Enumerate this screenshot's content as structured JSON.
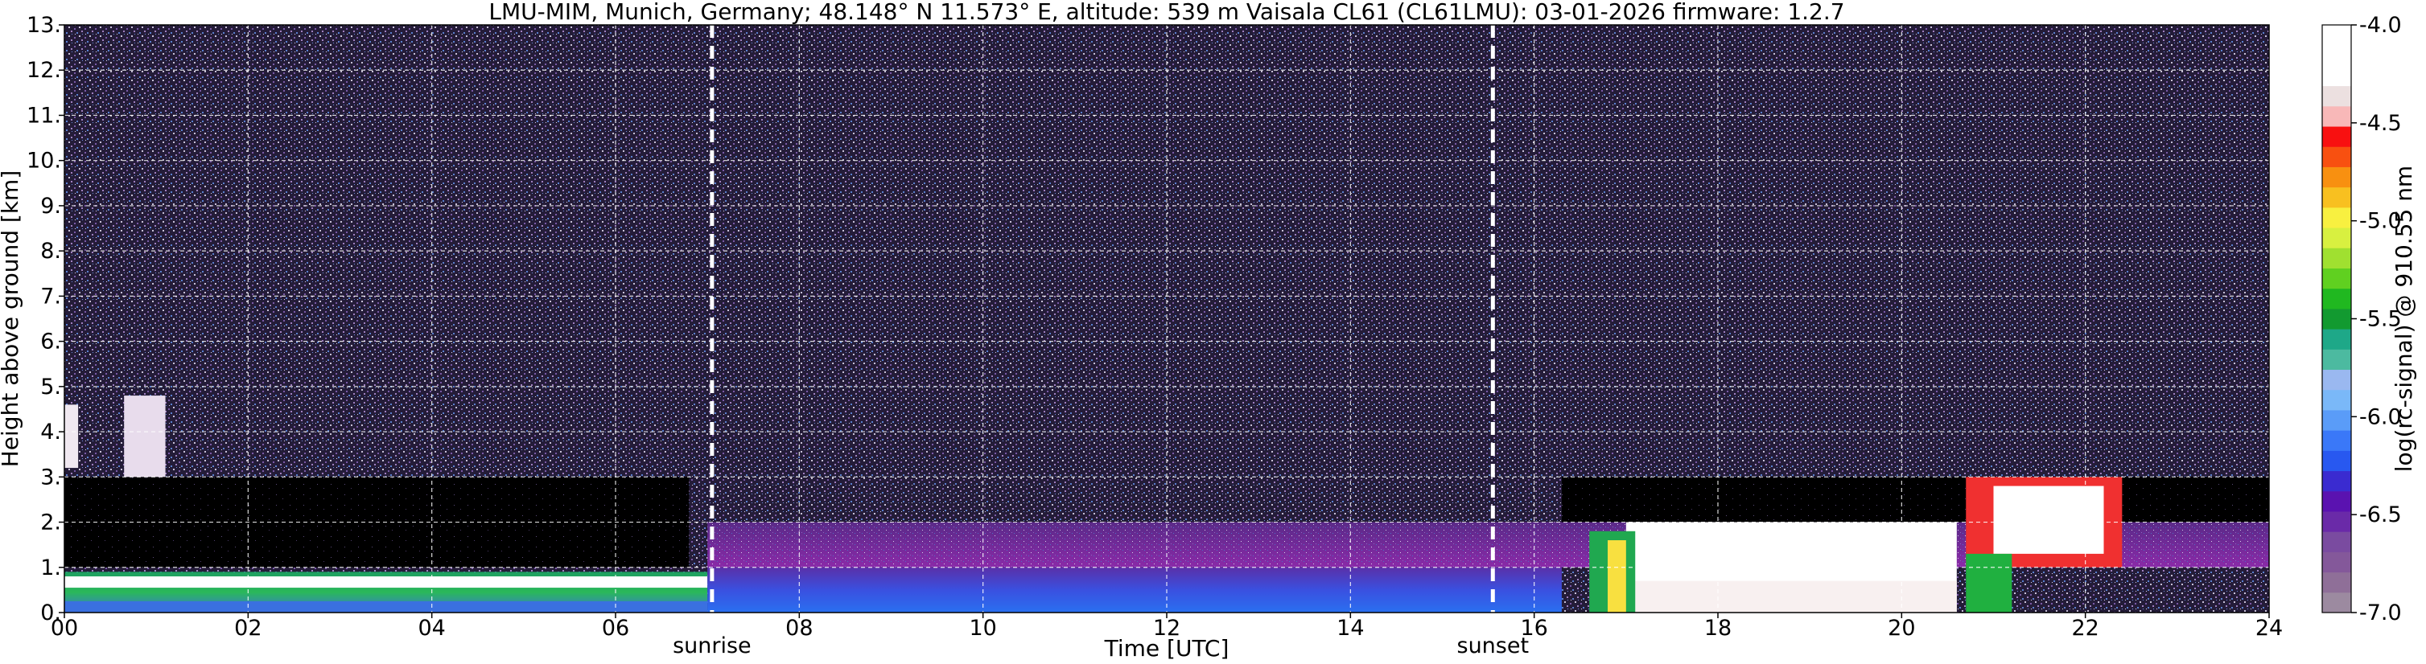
{
  "chart_data": {
    "type": "heatmap",
    "title": "LMU-MIM, Munich, Germany; 48.148° N 11.573° E, altitude: 539 m    Vaisala CL61 (CL61LMU): 03-01-2026    firmware: 1.2.7",
    "xlabel": "Time [UTC]",
    "ylabel": "Height above ground [km]",
    "xlim": [
      0,
      24
    ],
    "ylim": [
      0,
      13
    ],
    "x_ticks": [
      0,
      2,
      4,
      6,
      8,
      10,
      12,
      14,
      16,
      18,
      20,
      22,
      24
    ],
    "x_tick_labels": [
      "00",
      "02",
      "04",
      "06",
      "08",
      "10",
      "12",
      "14",
      "16",
      "18",
      "20",
      "22",
      "24"
    ],
    "y_ticks": [
      0,
      1,
      2,
      3,
      4,
      5,
      6,
      7,
      8,
      9,
      10,
      11,
      12,
      13
    ],
    "y_tick_labels": [
      "0.",
      "1.",
      "2.",
      "3.",
      "4.",
      "5.",
      "6.",
      "7.",
      "8.",
      "9.",
      "10.",
      "11.",
      "12.",
      "13."
    ],
    "grid": true,
    "events": [
      {
        "label": "sunrise",
        "x": 7.05
      },
      {
        "label": "sunset",
        "x": 15.55
      }
    ],
    "colorbar": {
      "label": "log(rc-signal) @ 910.55 nm",
      "range": [
        -7.0,
        -4.0
      ],
      "ticks": [
        -7.0,
        -6.5,
        -6.0,
        -5.5,
        -5.0,
        -4.5,
        -4.0
      ],
      "tick_labels": [
        "-7.0",
        "-6.5",
        "-6.0",
        "-5.5",
        "-5.0",
        "-4.5",
        "-4.0"
      ],
      "colors": [
        "#9c8aa0",
        "#8f6f98",
        "#84589a",
        "#7a4ba0",
        "#6a2aa8",
        "#5a12b0",
        "#3a2bd0",
        "#2858f0",
        "#3a78f8",
        "#5a9cf8",
        "#7ab8f8",
        "#9ab8f0",
        "#4cbaa0",
        "#1ea888",
        "#129a30",
        "#20b820",
        "#60d020",
        "#a0e030",
        "#d8f040",
        "#f8f040",
        "#f8c020",
        "#f89010",
        "#f85010",
        "#f81010",
        "#f8b8b8",
        "#ece0e0",
        "#ffffff",
        "#ffffff",
        "#ffffff"
      ]
    },
    "features": [
      {
        "name": "noise-background",
        "x": [
          0,
          24
        ],
        "y": [
          1.5,
          13
        ],
        "value": -6.6
      },
      {
        "name": "nocturnal-clear-layer",
        "x": [
          0,
          6.8
        ],
        "y": [
          1.0,
          3.0
        ],
        "value": -7.0
      },
      {
        "name": "nocturnal-boundary-layer",
        "x": [
          0,
          7.0
        ],
        "y": [
          0.0,
          0.9
        ],
        "value": -5.8
      },
      {
        "name": "nocturnal-layer-top",
        "x": [
          0,
          7.0
        ],
        "y": [
          0.55,
          0.8
        ],
        "value": -4.5
      },
      {
        "name": "elevated-layer-early",
        "x": [
          0.0,
          0.15
        ],
        "y": [
          3.2,
          4.6
        ],
        "value": -4.6
      },
      {
        "name": "elevated-layer-early-2",
        "x": [
          0.65,
          1.1
        ],
        "y": [
          3.0,
          4.8
        ],
        "value": -4.8
      },
      {
        "name": "daytime-mixed-layer",
        "x": [
          7.0,
          16.3
        ],
        "y": [
          0.0,
          1.0
        ],
        "value": -6.3
      },
      {
        "name": "residual-layer",
        "x": [
          7.0,
          24
        ],
        "y": [
          1.0,
          2.0
        ],
        "value": -6.7
      },
      {
        "name": "evening-clear-layer",
        "x": [
          16.3,
          24
        ],
        "y": [
          2.0,
          3.0
        ],
        "value": -7.0
      },
      {
        "name": "low-cloud-evening",
        "x": [
          17.0,
          20.6
        ],
        "y": [
          0.0,
          2.0
        ],
        "value": -4.2
      },
      {
        "name": "cloud-top-evening",
        "x": [
          20.7,
          22.4
        ],
        "y": [
          1.0,
          3.0
        ],
        "value": -5.3
      }
    ]
  }
}
